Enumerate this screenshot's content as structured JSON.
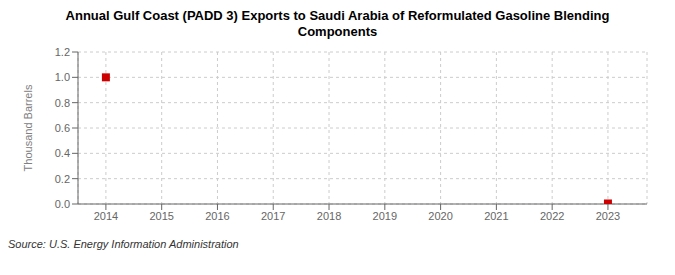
{
  "chart_data": {
    "type": "scatter",
    "title": "Annual Gulf Coast (PADD 3) Exports to Saudi Arabia of Reformulated Gasoline Blending\nComponents",
    "ylabel": "Thousand Barrels",
    "annotations": [
      "Source: U.S. Energy Information Administration"
    ],
    "x": [
      2014,
      2023
    ],
    "values": [
      1.0,
      0.004
    ],
    "color": "#cc0000",
    "marker": "square",
    "xlim": [
      2013.5,
      2023.7
    ],
    "xticks": [
      2014,
      2015,
      2016,
      2017,
      2018,
      2019,
      2020,
      2021,
      2022,
      2023
    ],
    "ylim": [
      0.0,
      1.2
    ],
    "yticks": [
      {
        "value": 0.0,
        "label": "0.0"
      },
      0.2,
      0.4,
      0.6,
      0.8,
      {
        "value": 1.0,
        "label": "1.0"
      },
      1.2
    ],
    "grid": true
  }
}
